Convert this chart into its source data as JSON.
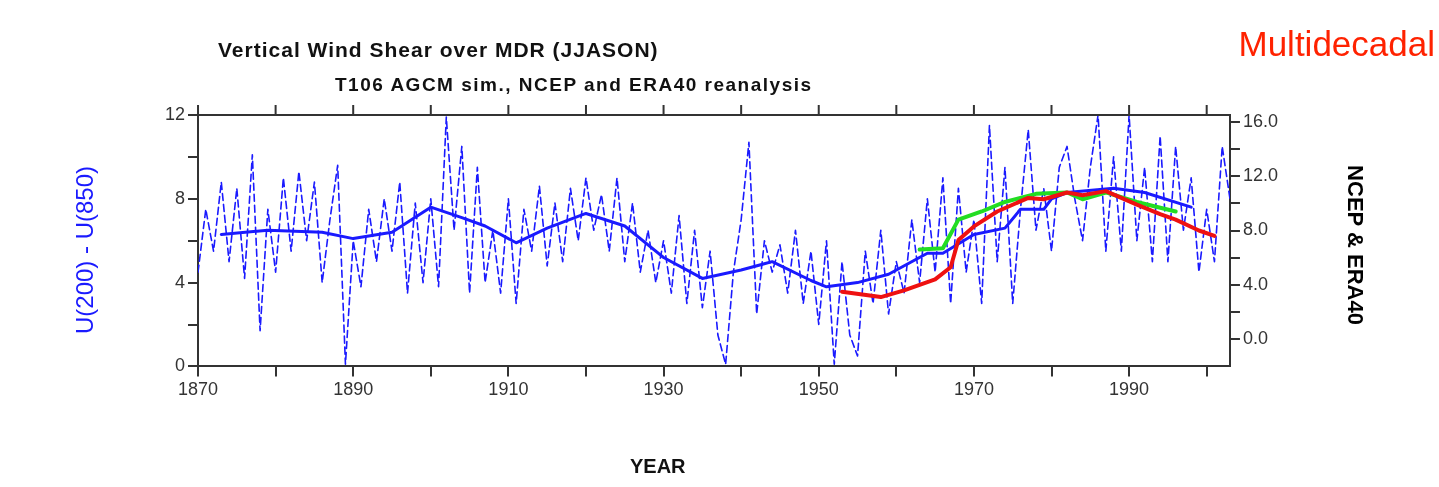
{
  "chart_data": {
    "type": "line",
    "title": "Vertical Wind Shear over MDR (JJASON)",
    "subtitle": "T106 AGCM sim., NCEP and ERA40 reanalysis",
    "xlabel": "YEAR",
    "ylabel": "U(200) - U(850)",
    "y2label": "NCEP & ERA40",
    "annotations": [
      "Multidecadal"
    ],
    "xlim": [
      1870,
      2003
    ],
    "xticks": [
      1870,
      {
        "value": 1880,
        "label": null
      },
      1890,
      {
        "value": 1900,
        "label": null
      },
      1910,
      {
        "value": 1920,
        "label": null
      },
      1930,
      {
        "value": 1940,
        "label": null
      },
      1950,
      {
        "value": 1960,
        "label": null
      },
      1970,
      {
        "value": 1980,
        "label": null
      },
      1990,
      {
        "value": 2000,
        "label": null
      }
    ],
    "ylim": [
      0,
      12
    ],
    "yticks": [
      0,
      {
        "value": 2,
        "label": null
      },
      4,
      {
        "value": 6,
        "label": null
      },
      8,
      {
        "value": 10,
        "label": null
      },
      12
    ],
    "y2lim": [
      -2,
      16.5
    ],
    "y2ticks": [
      {
        "value": 0,
        "label": "0.0"
      },
      {
        "value": 2,
        "label": null
      },
      {
        "value": 4,
        "label": "4.0"
      },
      {
        "value": 6,
        "label": null
      },
      {
        "value": 8,
        "label": "8.0"
      },
      {
        "value": 10,
        "label": null
      },
      {
        "value": 12,
        "label": "12.0"
      },
      {
        "value": 14,
        "label": null
      },
      {
        "value": 16,
        "label": "16.0"
      }
    ],
    "grid": false,
    "legend": false,
    "marker": "none",
    "series": [
      {
        "color": "#1a1aff",
        "line_style": "dashed",
        "x": [
          1870,
          1871,
          1872,
          1873,
          1874,
          1875,
          1876,
          1877,
          1878,
          1879,
          1880,
          1881,
          1882,
          1883,
          1884,
          1885,
          1886,
          1887,
          1888,
          1889,
          1890,
          1891,
          1892,
          1893,
          1894,
          1895,
          1896,
          1897,
          1898,
          1899,
          1900,
          1901,
          1902,
          1903,
          1904,
          1905,
          1906,
          1907,
          1908,
          1909,
          1910,
          1911,
          1912,
          1913,
          1914,
          1915,
          1916,
          1917,
          1918,
          1919,
          1920,
          1921,
          1922,
          1923,
          1924,
          1925,
          1926,
          1927,
          1928,
          1929,
          1930,
          1931,
          1932,
          1933,
          1934,
          1935,
          1936,
          1937,
          1938,
          1939,
          1940,
          1941,
          1942,
          1943,
          1944,
          1945,
          1946,
          1947,
          1948,
          1949,
          1950,
          1951,
          1952,
          1953,
          1954,
          1955,
          1956,
          1957,
          1958,
          1959,
          1960,
          1961,
          1962,
          1963,
          1964,
          1965,
          1966,
          1967,
          1968,
          1969,
          1970,
          1971,
          1972,
          1973,
          1974,
          1975,
          1976,
          1977,
          1978,
          1979,
          1980,
          1981,
          1982,
          1983,
          1984,
          1985,
          1986,
          1987,
          1988,
          1989,
          1990,
          1991,
          1992,
          1993,
          1994,
          1995,
          1996,
          1997,
          1998,
          1999,
          2000,
          2001,
          2002,
          2003
        ],
        "values": [
          4.5,
          7.5,
          5.5,
          8.8,
          5.0,
          8.5,
          4.2,
          10.1,
          1.7,
          7.5,
          4.5,
          9.0,
          5.5,
          9.3,
          6.0,
          8.8,
          4.0,
          7.0,
          9.6,
          0.1,
          6.0,
          3.8,
          7.5,
          5.0,
          8.0,
          5.5,
          8.8,
          3.5,
          7.8,
          4.0,
          8.0,
          3.8,
          11.9,
          6.5,
          10.5,
          3.5,
          9.5,
          4.0,
          6.5,
          3.5,
          8.0,
          3.0,
          7.5,
          5.5,
          8.6,
          4.8,
          7.8,
          5.0,
          8.5,
          6.0,
          9.0,
          6.5,
          8.2,
          5.5,
          9.0,
          5.0,
          7.8,
          4.5,
          6.5,
          4.0,
          6.0,
          3.5,
          7.2,
          3.0,
          6.5,
          2.8,
          5.5,
          1.5,
          0.1,
          4.5,
          7.0,
          10.7,
          2.5,
          6.0,
          4.5,
          5.8,
          3.5,
          6.5,
          3.0,
          5.5,
          2.0,
          6.0,
          0.1,
          5.0,
          1.5,
          0.5,
          5.5,
          3.0,
          6.5,
          2.5,
          5.0,
          3.5,
          7.0,
          4.0,
          8.0,
          4.5,
          9.0,
          3.0,
          8.5,
          4.5,
          7.0,
          3.0,
          11.5,
          5.0,
          9.5,
          3.0,
          7.5,
          11.3,
          6.5,
          8.5,
          5.5,
          9.5,
          10.5,
          8.0,
          6.0,
          9.5,
          12.0,
          5.5,
          10.0,
          5.5,
          12.0,
          6.0,
          9.5,
          5.0,
          11.0,
          5.0,
          10.5,
          6.5,
          9.0,
          4.5,
          7.5,
          5.0,
          10.5,
          8.0
        ]
      },
      {
        "color": "#1a1aff",
        "line_style": "solid",
        "x": [
          1873,
          1879,
          1886,
          1890,
          1895,
          1900,
          1904,
          1907,
          1911,
          1915,
          1920,
          1925,
          1930,
          1935,
          1940,
          1944,
          1949,
          1951,
          1955,
          1959,
          1964,
          1966,
          1970,
          1974,
          1976,
          1979,
          1980,
          1982,
          1988,
          1992,
          1998
        ],
        "values": [
          6.3,
          6.5,
          6.4,
          6.1,
          6.4,
          7.6,
          7.1,
          6.7,
          5.9,
          6.6,
          7.3,
          6.7,
          5.2,
          4.2,
          4.6,
          5.0,
          4.1,
          3.8,
          4.0,
          4.4,
          5.4,
          5.4,
          6.3,
          6.6,
          7.5,
          7.5,
          8.0,
          8.3,
          8.5,
          8.3,
          7.6
        ]
      },
      {
        "color": "#ee1111",
        "line_style": "solid",
        "axis": "y2",
        "x": [
          1953,
          1958,
          1961,
          1965,
          1967,
          1968,
          1970,
          1973,
          1977,
          1979,
          1982,
          1984,
          1987,
          1991,
          1994,
          1996,
          1999,
          2001
        ],
        "values": [
          3.5,
          3.1,
          3.6,
          4.4,
          5.3,
          7.3,
          8.3,
          9.4,
          10.4,
          10.3,
          10.8,
          10.6,
          10.9,
          9.9,
          9.2,
          8.8,
          8.0,
          7.6
        ]
      },
      {
        "color": "#22dd22",
        "line_style": "solid",
        "axis": "y2",
        "x": [
          1963,
          1966,
          1968,
          1971,
          1974,
          1978,
          1982,
          1984,
          1987,
          1991,
          1996
        ],
        "values": [
          6.6,
          6.7,
          8.8,
          9.4,
          10.1,
          10.7,
          10.8,
          10.3,
          10.8,
          10.1,
          9.4
        ]
      }
    ]
  }
}
